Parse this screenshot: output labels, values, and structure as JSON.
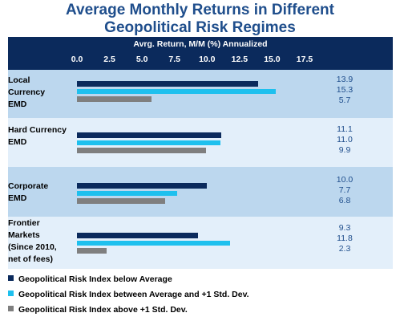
{
  "title_line1": "Average Monthly Returns in Different",
  "title_line2": "Geopolitical Risk Regimes",
  "chart_data": {
    "type": "bar",
    "orientation": "horizontal",
    "title": "Average Monthly Returns in Different Geopolitical Risk Regimes",
    "xlabel": "Avrg. Return, M/M (%) Annualized",
    "xlim": [
      0,
      17.5
    ],
    "xticks": [
      "0.0",
      "2.5",
      "5.0",
      "7.5",
      "10.0",
      "12.5",
      "15.0",
      "17.5"
    ],
    "legend_position": "bottom",
    "categories": [
      [
        "Local",
        "Currency",
        "EMD"
      ],
      [
        "Hard Currency",
        "EMD"
      ],
      [
        "Corporate",
        "EMD"
      ],
      [
        "Frontier",
        "Markets",
        "(Since 2010,",
        "net of fees)"
      ]
    ],
    "series": [
      {
        "name": "Geopolitical Risk Index below Average",
        "color": "#0b2a5c",
        "values": [
          13.9,
          11.1,
          10.0,
          9.3
        ],
        "labels": [
          "13.9",
          "11.1",
          "10.0",
          "9.3"
        ]
      },
      {
        "name": "Geopolitical Risk Index between Average and +1 Std. Dev.",
        "color": "#1ec0ee",
        "values": [
          15.3,
          11.0,
          7.7,
          11.8
        ],
        "labels": [
          "15.3",
          "11.0",
          "7.7",
          "11.8"
        ]
      },
      {
        "name": "Geopolitical Risk Index above +1 Std. Dev.",
        "color": "#7f7f7f",
        "values": [
          5.7,
          9.9,
          6.8,
          2.3
        ],
        "labels": [
          "5.7",
          "9.9",
          "6.8",
          "2.3"
        ]
      }
    ]
  }
}
